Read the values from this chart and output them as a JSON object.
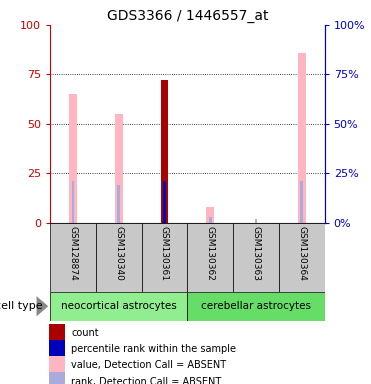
{
  "title": "GDS3366 / 1446557_at",
  "samples": [
    "GSM128874",
    "GSM130340",
    "GSM130361",
    "GSM130362",
    "GSM130363",
    "GSM130364"
  ],
  "groups": [
    {
      "name": "neocortical astrocytes",
      "color": "#90EE90",
      "indices": [
        0,
        1,
        2
      ]
    },
    {
      "name": "cerebellar astrocytes",
      "color": "#66DD66",
      "indices": [
        3,
        4,
        5
      ]
    }
  ],
  "value_absent": [
    65,
    55,
    0,
    8,
    0,
    86
  ],
  "rank_absent": [
    21,
    19,
    0,
    3,
    2,
    21
  ],
  "count_present": [
    0,
    0,
    72,
    0,
    0,
    0
  ],
  "percentile_present": [
    0,
    0,
    21,
    0,
    0,
    0
  ],
  "ylim": [
    0,
    100
  ],
  "yticks": [
    0,
    25,
    50,
    75,
    100
  ],
  "left_axis_color": "#CC0000",
  "right_axis_color": "#0000CC",
  "bg_color": "#C8C8C8",
  "value_absent_color": "#FFB6C1",
  "rank_absent_color": "#AAAADD",
  "count_color": "#AA0000",
  "percentile_color": "#0000BB",
  "legend_items": [
    {
      "color": "#AA0000",
      "label": "count"
    },
    {
      "color": "#0000BB",
      "label": "percentile rank within the sample"
    },
    {
      "color": "#FFB6C1",
      "label": "value, Detection Call = ABSENT"
    },
    {
      "color": "#AAAADD",
      "label": "rank, Detection Call = ABSENT"
    }
  ]
}
